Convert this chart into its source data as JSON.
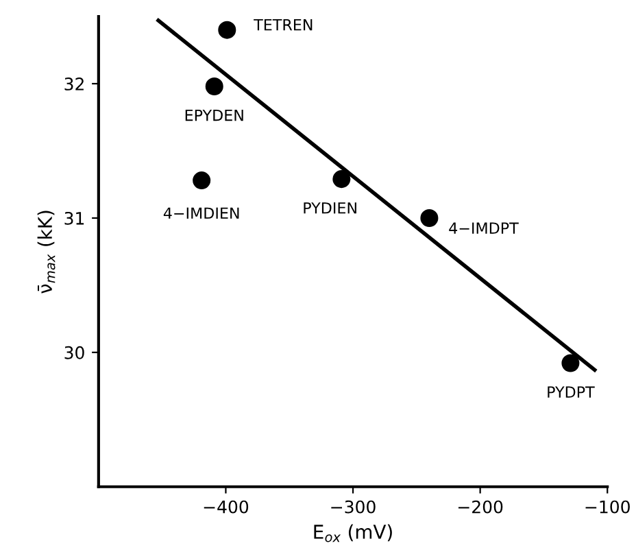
{
  "chart_data": {
    "type": "scatter",
    "xlabel": "E$_{ox}$ (mV)",
    "ylabel": "ν̄$_{max}$ (kK)",
    "xlim": [
      -500,
      -100
    ],
    "xticks": [
      {
        "value": -400,
        "label": "−400"
      },
      {
        "value": -300,
        "label": "−300"
      },
      {
        "value": -200,
        "label": "−200"
      },
      {
        "value": -100,
        "label": "−100"
      }
    ],
    "ylim": [
      29,
      32.5
    ],
    "yticks": [
      30,
      31,
      32
    ],
    "grid": false,
    "series": [
      {
        "marker": "circle",
        "color": "#000000",
        "x": [
          -399,
          -409,
          -419,
          -309,
          -240,
          -129
        ],
        "values": [
          32.4,
          31.98,
          31.28,
          31.29,
          31.0,
          29.92
        ]
      },
      {
        "type": "line",
        "marker": "none",
        "color": "#000000",
        "x": [
          -453,
          -110
        ],
        "values": [
          32.47,
          29.87
        ]
      }
    ],
    "annotations": [
      {
        "text": "TETREN",
        "x": -399,
        "y": 32.4
      },
      {
        "text": "EPYDEN",
        "x": -409,
        "y": 31.98
      },
      {
        "text": "4−IMDIEN",
        "x": -419,
        "y": 31.28
      },
      {
        "text": "PYDIEN",
        "x": -309,
        "y": 31.29
      },
      {
        "text": "4−IMDPT",
        "x": -240,
        "y": 31.0
      },
      {
        "text": "PYDPT",
        "x": -129,
        "y": 29.92
      }
    ]
  }
}
